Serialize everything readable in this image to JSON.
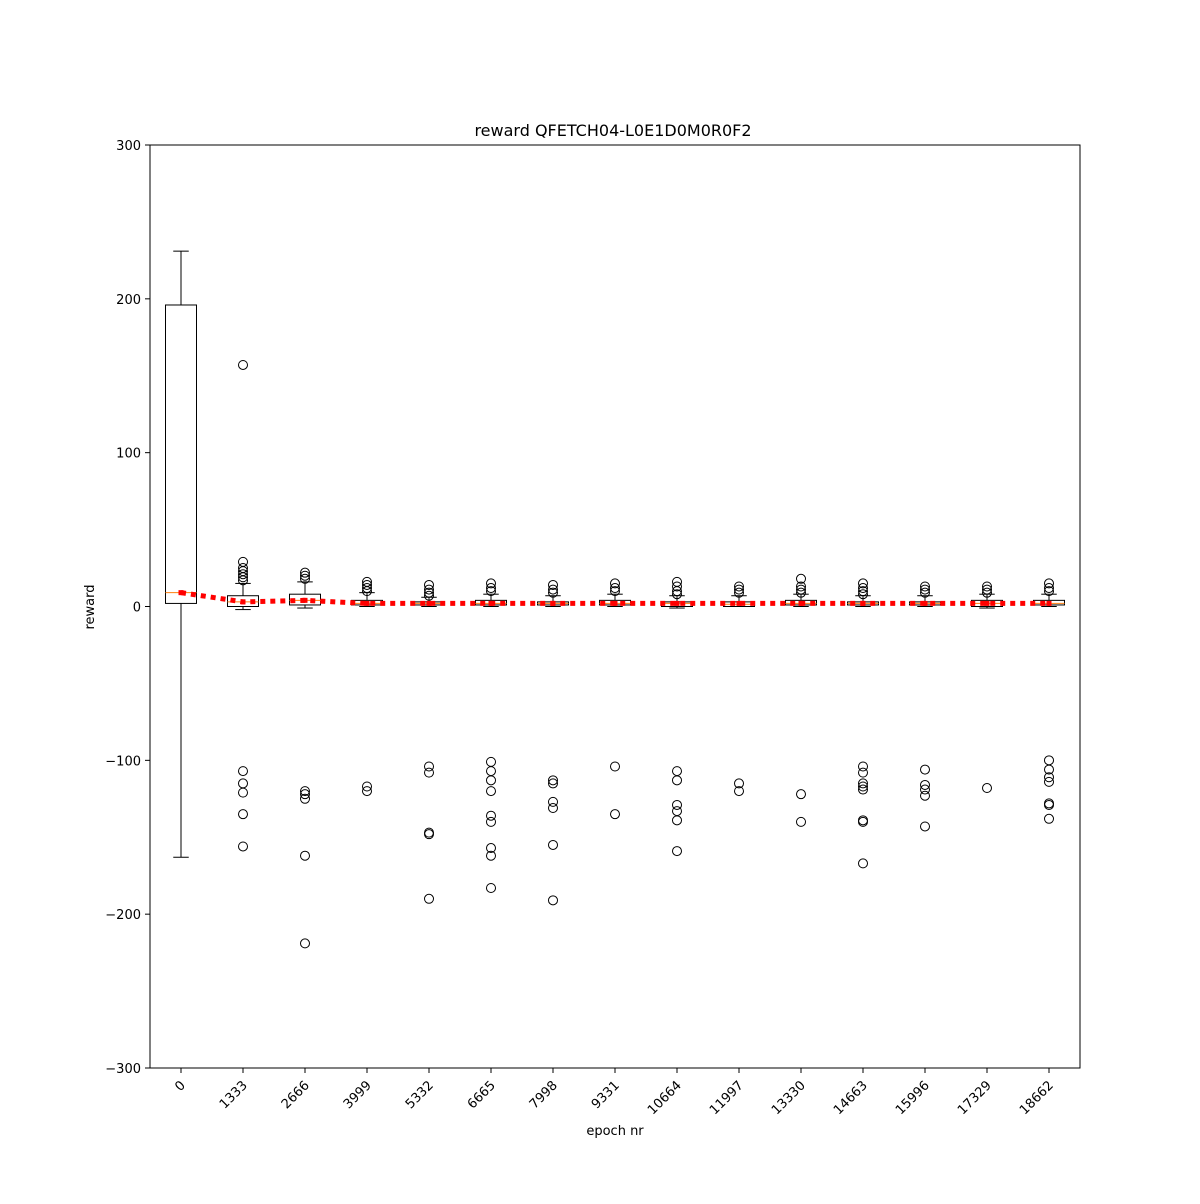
{
  "chart_data": {
    "type": "box",
    "title": "reward QFETCH04-L0E1D0M0R0F2",
    "xlabel": "epoch nr",
    "ylabel": "reward",
    "categories": [
      "0",
      "1333",
      "2666",
      "3999",
      "5332",
      "6665",
      "7998",
      "9331",
      "10664",
      "11997",
      "13330",
      "14663",
      "15996",
      "17329",
      "18662"
    ],
    "boxes": [
      {
        "whislo": -163,
        "q1": 2,
        "med": 9,
        "q3": 196,
        "whishi": 231,
        "fliers": []
      },
      {
        "whislo": -2,
        "q1": 0,
        "med": 3,
        "q3": 7,
        "whishi": 15,
        "fliers": [
          157,
          29,
          25,
          23,
          21,
          19,
          17,
          -107,
          -115,
          -121,
          -135,
          -156
        ]
      },
      {
        "whislo": -1,
        "q1": 1,
        "med": 4,
        "q3": 8,
        "whishi": 16,
        "fliers": [
          22,
          20,
          18,
          -120,
          -122,
          -125,
          -162,
          -219
        ]
      },
      {
        "whislo": 0,
        "q1": 1,
        "med": 2,
        "q3": 4,
        "whishi": 9,
        "fliers": [
          16,
          14,
          12,
          10,
          -117,
          -120
        ]
      },
      {
        "whislo": 0,
        "q1": 1,
        "med": 2,
        "q3": 3,
        "whishi": 6,
        "fliers": [
          14,
          11,
          9,
          7,
          -104,
          -108,
          -147,
          -148,
          -190
        ]
      },
      {
        "whislo": 0,
        "q1": 1,
        "med": 2,
        "q3": 4,
        "whishi": 8,
        "fliers": [
          15,
          12,
          10,
          -101,
          -107,
          -113,
          -120,
          -136,
          -140,
          -157,
          -162,
          -183
        ]
      },
      {
        "whislo": 0,
        "q1": 1,
        "med": 2,
        "q3": 3,
        "whishi": 7,
        "fliers": [
          14,
          11,
          9,
          -113,
          -115,
          -127,
          -131,
          -155,
          -191
        ]
      },
      {
        "whislo": 0,
        "q1": 1,
        "med": 2,
        "q3": 4,
        "whishi": 8,
        "fliers": [
          15,
          12,
          10,
          -104,
          -135
        ]
      },
      {
        "whislo": -1,
        "q1": 0,
        "med": 2,
        "q3": 3,
        "whishi": 7,
        "fliers": [
          16,
          13,
          10,
          8,
          -107,
          -113,
          -129,
          -133,
          -139,
          -159
        ]
      },
      {
        "whislo": 0,
        "q1": 0,
        "med": 1.5,
        "q3": 3,
        "whishi": 7,
        "fliers": [
          13,
          11,
          9,
          -115,
          -120
        ]
      },
      {
        "whislo": 0,
        "q1": 1,
        "med": 2,
        "q3": 4,
        "whishi": 8,
        "fliers": [
          18,
          13,
          11,
          9,
          -122,
          -140
        ]
      },
      {
        "whislo": 0,
        "q1": 1,
        "med": 2,
        "q3": 3,
        "whishi": 7,
        "fliers": [
          15,
          12,
          10,
          8,
          -104,
          -108,
          -115,
          -117,
          -119,
          -139,
          -140,
          -167
        ]
      },
      {
        "whislo": 0,
        "q1": 1,
        "med": 2,
        "q3": 3,
        "whishi": 7,
        "fliers": [
          13,
          11,
          9,
          -106,
          -116,
          -119,
          -123,
          -143
        ]
      },
      {
        "whislo": -1,
        "q1": 0,
        "med": 2,
        "q3": 4,
        "whishi": 8,
        "fliers": [
          13,
          11,
          9,
          -118
        ]
      },
      {
        "whislo": 0,
        "q1": 1,
        "med": 2,
        "q3": 4,
        "whishi": 8,
        "fliers": [
          15,
          12,
          10,
          -100,
          -106,
          -111,
          -114,
          -128,
          -129,
          -138
        ]
      }
    ],
    "means": [
      9,
      3,
      4,
      2,
      2,
      2,
      2,
      2,
      2,
      2,
      2,
      2,
      2,
      2,
      2
    ],
    "mean_color": "#ff0000",
    "median_color": "#ff7f0e",
    "box_color": "#000000",
    "ylim": [
      -300,
      300
    ],
    "yticks": [
      {
        "value": -300,
        "label": "−300"
      },
      {
        "value": -200,
        "label": "−200"
      },
      {
        "value": -100,
        "label": "−100"
      },
      0,
      100,
      200,
      300
    ],
    "grid": false
  }
}
